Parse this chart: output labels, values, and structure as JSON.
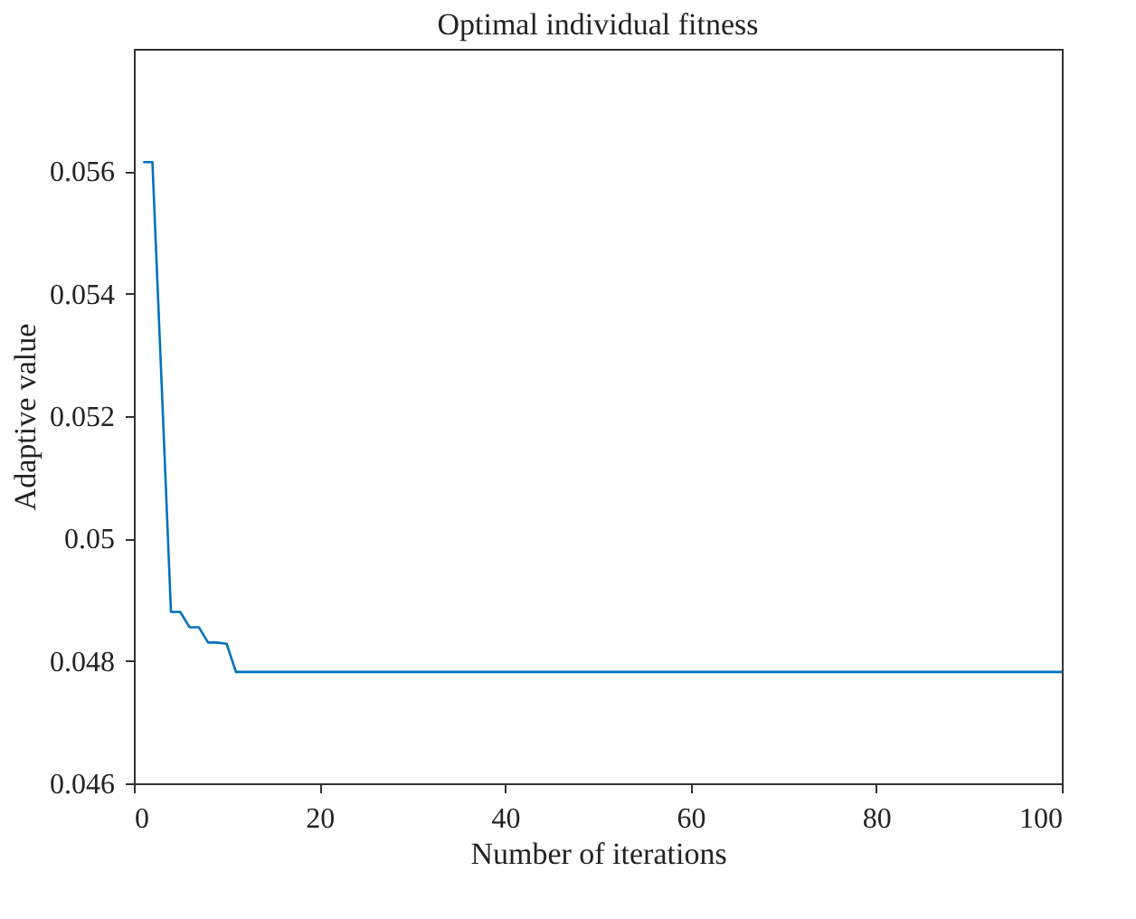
{
  "chart_data": {
    "type": "line",
    "title": "Optimal individual fitness",
    "xlabel": "Number of iterations",
    "ylabel": "Adaptive value",
    "x": [
      1,
      2,
      3,
      4,
      5,
      6,
      7,
      8,
      9,
      10,
      11,
      12,
      20,
      40,
      60,
      80,
      100
    ],
    "series": [
      {
        "color": "#0072bd",
        "values": [
          0.05615,
          0.05615,
          0.0525,
          0.0488,
          0.0488,
          0.04855,
          0.04855,
          0.0483,
          0.0483,
          0.04828,
          0.04782,
          0.04782,
          0.04782,
          0.04782,
          0.04782,
          0.04782,
          0.04782
        ]
      }
    ],
    "xlim": [
      0,
      100
    ],
    "xticks": [
      0,
      20,
      40,
      60,
      80,
      100
    ],
    "ylim": [
      0.046,
      0.058
    ],
    "yticks": [
      {
        "value": 0.046,
        "label": "0.046"
      },
      {
        "value": 0.048,
        "label": "0.048"
      },
      {
        "value": 0.05,
        "label": "0.05"
      },
      {
        "value": 0.052,
        "label": "0.052"
      },
      {
        "value": 0.054,
        "label": "0.054"
      },
      {
        "value": 0.056,
        "label": "0.056"
      }
    ],
    "grid": false,
    "marker": "none",
    "line_style": "solid"
  }
}
